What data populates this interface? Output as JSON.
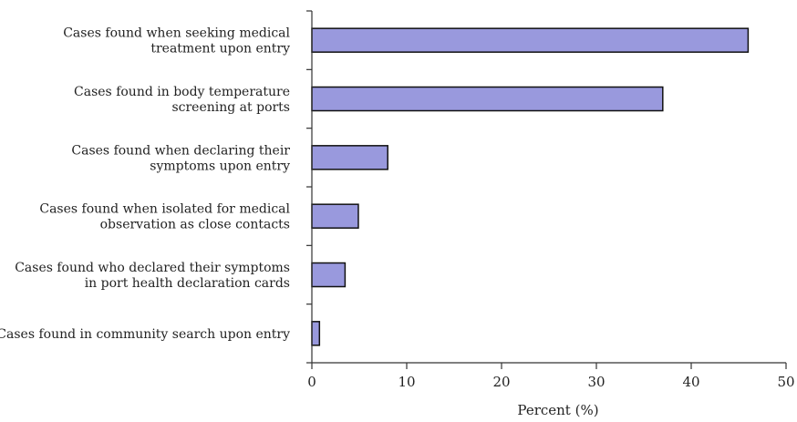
{
  "chart_data": {
    "type": "bar",
    "orientation": "horizontal",
    "categories": [
      [
        "Cases found when seeking medical",
        "treatment upon entry"
      ],
      [
        "Cases found in body temperature",
        "screening at ports"
      ],
      [
        "Cases found when declaring their",
        "symptoms upon entry"
      ],
      [
        "Cases found when isolated for medical",
        "observation as close contacts"
      ],
      [
        "Cases found who declared their symptoms",
        "in port health declaration cards"
      ],
      [
        "Cases found in community search upon entry"
      ]
    ],
    "values": [
      46.0,
      37.0,
      8.0,
      4.9,
      3.5,
      0.8
    ],
    "xlabel": "Percent (%)",
    "xlim": [
      0,
      50
    ],
    "xticks": [
      "0",
      "10",
      "20",
      "30",
      "40",
      "50"
    ],
    "grid": false,
    "legend": "none",
    "colors": {
      "bar_fill": "#9999dd",
      "bar_stroke": "#111111",
      "axis": "#333333"
    }
  }
}
